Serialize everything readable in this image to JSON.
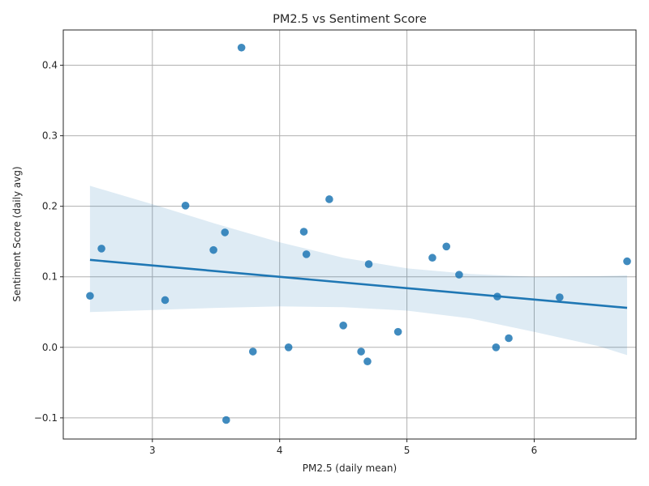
{
  "chart_data": {
    "type": "scatter",
    "title": "PM2.5 vs Sentiment Score",
    "xlabel": "PM2.5 (daily mean)",
    "ylabel": "Sentiment Score (daily avg)",
    "xlim": [
      2.3,
      6.8
    ],
    "ylim": [
      -0.13,
      0.45
    ],
    "xticks": [
      3,
      4,
      5,
      6
    ],
    "yticks": [
      -0.1,
      0.0,
      0.1,
      0.2,
      0.3,
      0.4
    ],
    "xtick_labels": [
      "3",
      "4",
      "5",
      "6"
    ],
    "ytick_labels": [
      "−0.1",
      "0.0",
      "0.1",
      "0.2",
      "0.3",
      "0.4"
    ],
    "grid": true,
    "points": [
      {
        "x": 2.51,
        "y": 0.073
      },
      {
        "x": 2.6,
        "y": 0.14
      },
      {
        "x": 3.1,
        "y": 0.067
      },
      {
        "x": 3.26,
        "y": 0.201
      },
      {
        "x": 3.48,
        "y": 0.138
      },
      {
        "x": 3.57,
        "y": 0.163
      },
      {
        "x": 3.58,
        "y": -0.103
      },
      {
        "x": 3.7,
        "y": 0.425
      },
      {
        "x": 3.79,
        "y": -0.006
      },
      {
        "x": 4.07,
        "y": 0.0
      },
      {
        "x": 4.19,
        "y": 0.164
      },
      {
        "x": 4.21,
        "y": 0.132
      },
      {
        "x": 4.39,
        "y": 0.21
      },
      {
        "x": 4.5,
        "y": 0.031
      },
      {
        "x": 4.64,
        "y": -0.006
      },
      {
        "x": 4.69,
        "y": -0.02
      },
      {
        "x": 4.7,
        "y": 0.118
      },
      {
        "x": 4.93,
        "y": 0.022
      },
      {
        "x": 5.2,
        "y": 0.127
      },
      {
        "x": 5.31,
        "y": 0.143
      },
      {
        "x": 5.41,
        "y": 0.103
      },
      {
        "x": 5.7,
        "y": 0.0
      },
      {
        "x": 5.71,
        "y": 0.072
      },
      {
        "x": 5.8,
        "y": 0.013
      },
      {
        "x": 6.2,
        "y": 0.071
      },
      {
        "x": 6.73,
        "y": 0.122
      }
    ],
    "regression": {
      "x": [
        2.51,
        6.73
      ],
      "y": [
        0.124,
        0.056
      ]
    },
    "confidence_band": {
      "x": [
        2.51,
        3.0,
        3.5,
        4.0,
        4.5,
        5.0,
        5.5,
        6.0,
        6.5,
        6.73
      ],
      "upper": [
        0.229,
        0.203,
        0.175,
        0.149,
        0.127,
        0.112,
        0.104,
        0.1,
        0.101,
        0.102
      ],
      "lower": [
        0.05,
        0.053,
        0.056,
        0.058,
        0.057,
        0.052,
        0.041,
        0.022,
        0.002,
        -0.011
      ]
    },
    "colors": {
      "point": "#1f77b4",
      "line": "#1f77b4",
      "band": "#1f77b4"
    }
  }
}
